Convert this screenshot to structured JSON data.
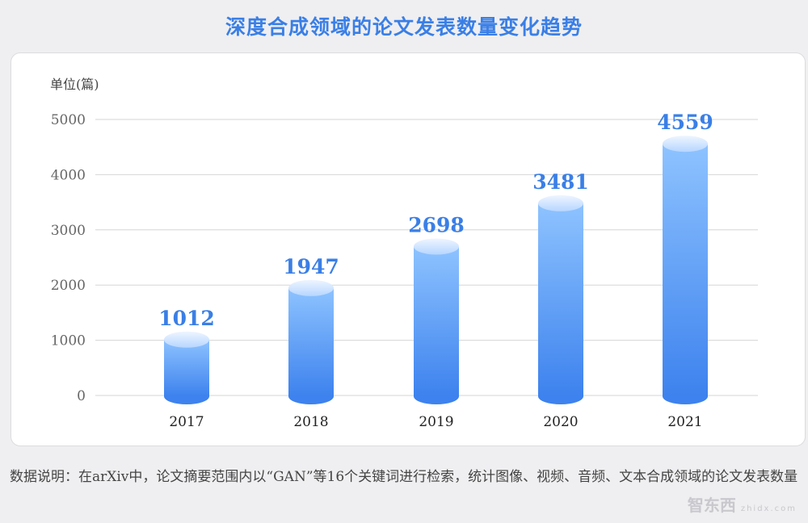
{
  "title": "深度合成领域的论文发表数量变化趋势",
  "note": "数据说明：在arXiv中，论文摘要范围内以“GAN”等16个关键词进行检索，统计图像、视频、音频、文本合成领域的论文发表数量",
  "watermark": {
    "text": "智东西",
    "sub": "zhidx.com"
  },
  "chart_data": {
    "type": "bar",
    "style": "3d-cylinder",
    "ylabel": "单位(篇)",
    "categories": [
      "2017",
      "2018",
      "2019",
      "2020",
      "2021"
    ],
    "values": [
      1012,
      1947,
      2698,
      3481,
      4559
    ],
    "ylim": [
      0,
      5000
    ],
    "yticks": [
      "0",
      "1000",
      "2000",
      "3000",
      "4000",
      "5000"
    ],
    "grid": true,
    "colors": {
      "bar_top": "#8ec3ff",
      "bar_bottom": "#3d82ee",
      "label": "#3a7fe6"
    }
  }
}
